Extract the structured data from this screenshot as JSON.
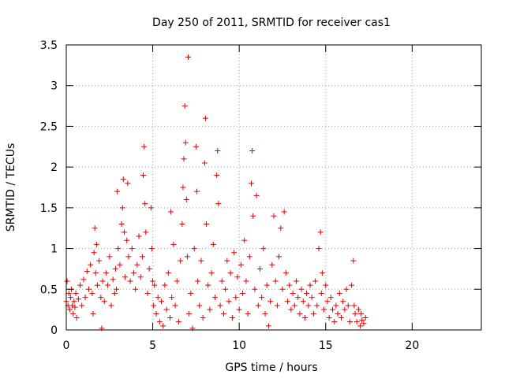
{
  "chart_data": {
    "type": "scatter",
    "title": "Day 250 of 2011, SRMTID for receiver cas1",
    "xlabel": "GPS time / hours",
    "ylabel": "SRMTID / TECUs",
    "xlim": [
      0,
      24
    ],
    "ylim": [
      0,
      3.5
    ],
    "xticks": [
      0,
      5,
      10,
      15,
      20
    ],
    "xtick_labels": [
      "0",
      "5",
      "10",
      "15",
      "20"
    ],
    "yticks": [
      0,
      0.5,
      1,
      1.5,
      2,
      2.5,
      3,
      3.5
    ],
    "ytick_labels": [
      "0",
      "0.5",
      "1",
      "1.5",
      "2",
      "2.5",
      "3",
      "3.5"
    ],
    "grid": true,
    "marker": "+",
    "color": "#e00000",
    "series": [
      {
        "name": "SRMTID",
        "points": [
          [
            0.0,
            0.35
          ],
          [
            0.05,
            0.6
          ],
          [
            0.1,
            0.3
          ],
          [
            0.15,
            0.45
          ],
          [
            0.2,
            0.25
          ],
          [
            0.25,
            0.4
          ],
          [
            0.3,
            0.5
          ],
          [
            0.35,
            0.3
          ],
          [
            0.4,
            0.2
          ],
          [
            0.45,
            0.35
          ],
          [
            0.5,
            0.28
          ],
          [
            0.55,
            0.45
          ],
          [
            0.6,
            0.15
          ],
          [
            0.7,
            0.38
          ],
          [
            0.8,
            0.55
          ],
          [
            0.9,
            0.3
          ],
          [
            1.0,
            0.62
          ],
          [
            1.1,
            0.4
          ],
          [
            1.2,
            0.72
          ],
          [
            1.3,
            0.5
          ],
          [
            1.4,
            0.8
          ],
          [
            1.5,
            0.45
          ],
          [
            1.55,
            0.2
          ],
          [
            1.6,
            0.95
          ],
          [
            1.65,
            1.25
          ],
          [
            1.7,
            0.7
          ],
          [
            1.75,
            1.05
          ],
          [
            1.8,
            0.55
          ],
          [
            1.9,
            0.85
          ],
          [
            2.0,
            0.4
          ],
          [
            2.05,
            0.02
          ],
          [
            2.1,
            0.6
          ],
          [
            2.2,
            0.35
          ],
          [
            2.3,
            0.7
          ],
          [
            2.4,
            0.55
          ],
          [
            2.5,
            0.9
          ],
          [
            2.6,
            0.3
          ],
          [
            2.7,
            0.62
          ],
          [
            2.8,
            0.45
          ],
          [
            2.85,
            0.75
          ],
          [
            2.9,
            0.5
          ],
          [
            2.95,
            1.7
          ],
          [
            3.0,
            1.0
          ],
          [
            3.1,
            0.8
          ],
          [
            3.2,
            1.3
          ],
          [
            3.25,
            1.5
          ],
          [
            3.3,
            1.85
          ],
          [
            3.35,
            1.2
          ],
          [
            3.4,
            0.65
          ],
          [
            3.5,
            1.1
          ],
          [
            3.55,
            1.8
          ],
          [
            3.6,
            0.9
          ],
          [
            3.7,
            0.6
          ],
          [
            3.8,
            1.0
          ],
          [
            3.9,
            0.7
          ],
          [
            4.0,
            0.5
          ],
          [
            4.1,
            0.8
          ],
          [
            4.2,
            1.15
          ],
          [
            4.3,
            0.65
          ],
          [
            4.4,
            0.9
          ],
          [
            4.45,
            1.9
          ],
          [
            4.5,
            2.25
          ],
          [
            4.55,
            1.55
          ],
          [
            4.6,
            1.2
          ],
          [
            4.7,
            0.45
          ],
          [
            4.8,
            0.75
          ],
          [
            4.9,
            1.5
          ],
          [
            4.95,
            1.0
          ],
          [
            5.0,
            0.6
          ],
          [
            5.05,
            0.3
          ],
          [
            5.1,
            0.55
          ],
          [
            5.2,
            0.2
          ],
          [
            5.3,
            0.4
          ],
          [
            5.4,
            0.1
          ],
          [
            5.5,
            0.35
          ],
          [
            5.6,
            0.05
          ],
          [
            5.7,
            0.55
          ],
          [
            5.8,
            0.25
          ],
          [
            5.9,
            0.7
          ],
          [
            6.0,
            0.15
          ],
          [
            6.05,
            1.45
          ],
          [
            6.1,
            0.4
          ],
          [
            6.2,
            1.05
          ],
          [
            6.3,
            0.3
          ],
          [
            6.4,
            0.6
          ],
          [
            6.5,
            0.1
          ],
          [
            6.6,
            0.85
          ],
          [
            6.7,
            1.3
          ],
          [
            6.75,
            1.75
          ],
          [
            6.8,
            2.1
          ],
          [
            6.85,
            2.75
          ],
          [
            6.9,
            2.3
          ],
          [
            6.95,
            1.6
          ],
          [
            7.0,
            0.9
          ],
          [
            7.05,
            3.35
          ],
          [
            7.1,
            0.2
          ],
          [
            7.2,
            0.45
          ],
          [
            7.3,
            0.02
          ],
          [
            7.4,
            1.0
          ],
          [
            7.5,
            2.25
          ],
          [
            7.55,
            1.7
          ],
          [
            7.6,
            0.6
          ],
          [
            7.7,
            0.3
          ],
          [
            7.8,
            0.85
          ],
          [
            7.9,
            0.15
          ],
          [
            8.0,
            2.05
          ],
          [
            8.05,
            2.6
          ],
          [
            8.1,
            1.3
          ],
          [
            8.2,
            0.55
          ],
          [
            8.3,
            0.25
          ],
          [
            8.4,
            0.7
          ],
          [
            8.5,
            1.05
          ],
          [
            8.6,
            0.4
          ],
          [
            8.7,
            1.9
          ],
          [
            8.75,
            2.2
          ],
          [
            8.8,
            1.55
          ],
          [
            8.9,
            0.3
          ],
          [
            9.0,
            0.6
          ],
          [
            9.1,
            0.2
          ],
          [
            9.2,
            0.5
          ],
          [
            9.3,
            0.85
          ],
          [
            9.4,
            0.35
          ],
          [
            9.5,
            0.7
          ],
          [
            9.6,
            0.15
          ],
          [
            9.7,
            0.95
          ],
          [
            9.8,
            0.4
          ],
          [
            9.9,
            0.65
          ],
          [
            10.0,
            0.25
          ],
          [
            10.1,
            0.8
          ],
          [
            10.2,
            0.45
          ],
          [
            10.3,
            1.1
          ],
          [
            10.4,
            0.6
          ],
          [
            10.5,
            0.2
          ],
          [
            10.6,
            0.9
          ],
          [
            10.7,
            1.8
          ],
          [
            10.75,
            2.2
          ],
          [
            10.8,
            1.4
          ],
          [
            10.9,
            0.5
          ],
          [
            11.0,
            1.65
          ],
          [
            11.1,
            0.3
          ],
          [
            11.2,
            0.75
          ],
          [
            11.3,
            0.4
          ],
          [
            11.4,
            1.0
          ],
          [
            11.5,
            0.2
          ],
          [
            11.6,
            0.55
          ],
          [
            11.7,
            0.05
          ],
          [
            11.8,
            0.35
          ],
          [
            11.9,
            0.8
          ],
          [
            12.0,
            1.4
          ],
          [
            12.1,
            0.6
          ],
          [
            12.2,
            0.3
          ],
          [
            12.3,
            0.9
          ],
          [
            12.4,
            1.25
          ],
          [
            12.5,
            0.5
          ],
          [
            12.6,
            1.45
          ],
          [
            12.7,
            0.7
          ],
          [
            12.8,
            0.35
          ],
          [
            12.9,
            0.55
          ],
          [
            13.0,
            0.25
          ],
          [
            13.1,
            0.45
          ],
          [
            13.2,
            0.3
          ],
          [
            13.3,
            0.6
          ],
          [
            13.4,
            0.4
          ],
          [
            13.5,
            0.2
          ],
          [
            13.6,
            0.5
          ],
          [
            13.7,
            0.35
          ],
          [
            13.8,
            0.15
          ],
          [
            13.9,
            0.45
          ],
          [
            14.0,
            0.3
          ],
          [
            14.1,
            0.55
          ],
          [
            14.2,
            0.4
          ],
          [
            14.3,
            0.2
          ],
          [
            14.4,
            0.6
          ],
          [
            14.5,
            0.3
          ],
          [
            14.6,
            1.0
          ],
          [
            14.7,
            1.2
          ],
          [
            14.75,
            0.45
          ],
          [
            14.8,
            0.7
          ],
          [
            14.9,
            0.25
          ],
          [
            15.0,
            0.55
          ],
          [
            15.1,
            0.35
          ],
          [
            15.2,
            0.15
          ],
          [
            15.3,
            0.4
          ],
          [
            15.4,
            0.25
          ],
          [
            15.5,
            0.1
          ],
          [
            15.6,
            0.3
          ],
          [
            15.7,
            0.2
          ],
          [
            15.8,
            0.45
          ],
          [
            15.9,
            0.15
          ],
          [
            16.0,
            0.35
          ],
          [
            16.1,
            0.25
          ],
          [
            16.2,
            0.5
          ],
          [
            16.3,
            0.3
          ],
          [
            16.4,
            0.1
          ],
          [
            16.5,
            0.55
          ],
          [
            16.6,
            0.85
          ],
          [
            16.65,
            0.3
          ],
          [
            16.7,
            0.2
          ],
          [
            16.8,
            0.1
          ],
          [
            16.9,
            0.25
          ],
          [
            17.0,
            0.05
          ],
          [
            17.05,
            0.2
          ],
          [
            17.1,
            0.12
          ],
          [
            17.2,
            0.08
          ],
          [
            17.3,
            0.15
          ]
        ]
      }
    ]
  }
}
